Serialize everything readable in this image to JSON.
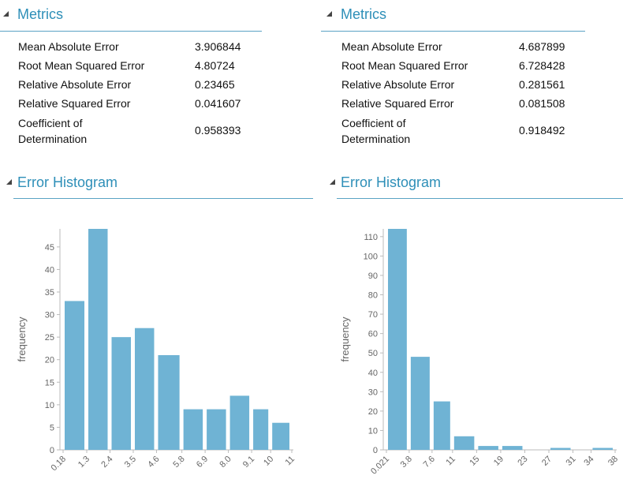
{
  "panels": [
    {
      "metrics_title": "Metrics",
      "metrics": [
        {
          "name": "Mean Absolute Error",
          "value": 3.906844
        },
        {
          "name": "Root Mean Squared Error",
          "value": 4.80724
        },
        {
          "name": "Relative Absolute Error",
          "value": 0.23465
        },
        {
          "name": "Relative Squared Error",
          "value": 0.041607
        },
        {
          "name": "Coefficient of Determination",
          "value": 0.958393
        }
      ],
      "histogram_title": "Error Histogram"
    },
    {
      "metrics_title": "Metrics",
      "metrics": [
        {
          "name": "Mean Absolute Error",
          "value": 4.687899
        },
        {
          "name": "Root Mean Squared Error",
          "value": 6.728428
        },
        {
          "name": "Relative Absolute Error",
          "value": 0.281561
        },
        {
          "name": "Relative Squared Error",
          "value": 0.081508
        },
        {
          "name": "Coefficient of Determination",
          "value": 0.918492
        }
      ],
      "histogram_title": "Error Histogram"
    }
  ],
  "chart_data": [
    {
      "type": "histogram",
      "y_label": "frequency",
      "color": "#6fb3d4",
      "bins": [
        0.18,
        1.3,
        2.4,
        3.5,
        4.6,
        5.8,
        6.9,
        8.0,
        9.1,
        10,
        11
      ],
      "values": [
        33,
        49,
        25,
        27,
        21,
        9,
        9,
        12,
        9,
        6
      ],
      "xlim": [
        0.18,
        11
      ],
      "xticks": [
        0.18,
        1.3,
        2.4,
        3.5,
        4.6,
        5.8,
        6.9,
        {
          "value": 8.0,
          "label": "8.0"
        },
        9.1,
        10,
        11
      ],
      "ylim": [
        0,
        49
      ],
      "yticks": [
        0,
        5,
        10,
        15,
        20,
        25,
        30,
        35,
        40,
        45
      ]
    },
    {
      "type": "histogram",
      "y_label": "frequency",
      "color": "#6fb3d4",
      "bins": [
        0.021,
        3.8,
        7.6,
        11,
        15,
        19,
        23,
        27,
        31,
        34,
        38
      ],
      "values": [
        114,
        48,
        25,
        7,
        2,
        2,
        0,
        1,
        0,
        1
      ],
      "xlim": [
        0.021,
        38
      ],
      "xticks": [
        0.021,
        3.8,
        7.6,
        11,
        15,
        19,
        23,
        27,
        31,
        34,
        38
      ],
      "ylim": [
        0,
        114
      ],
      "yticks": [
        0,
        10,
        20,
        30,
        40,
        50,
        60,
        70,
        80,
        90,
        100,
        110
      ]
    }
  ]
}
